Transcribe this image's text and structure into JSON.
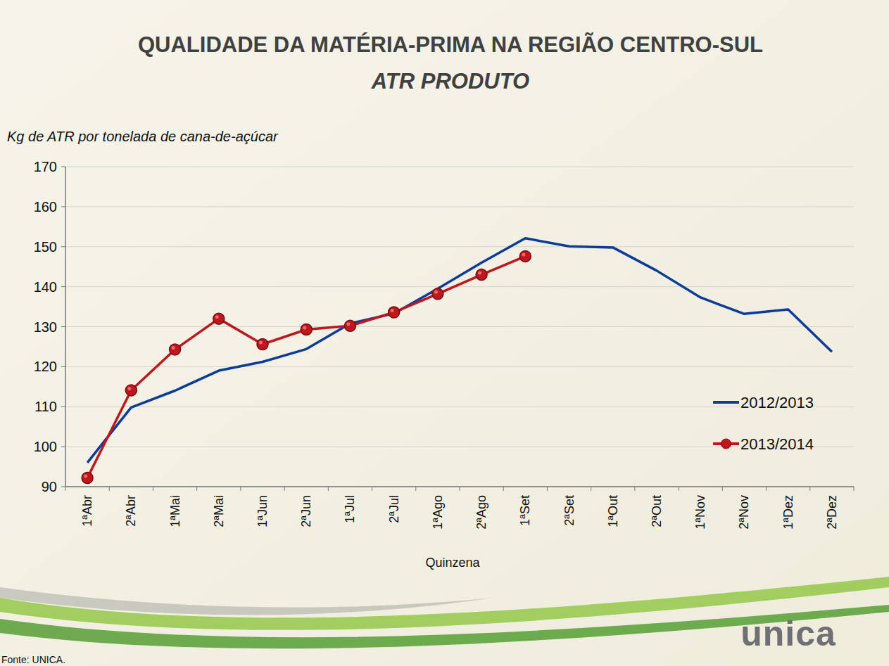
{
  "chart_data": {
    "type": "line",
    "title": "QUALIDADE DA MATÉRIA-PRIMA NA REGIÃO CENTRO-SUL",
    "subtitle": "ATR PRODUTO",
    "y_label": "Kg de ATR por tonelada de cana-de-açúcar",
    "x_label": "Quinzena",
    "source": "Fonte: UNICA.",
    "annotations": [
      "unica"
    ],
    "categories": [
      "1ªAbr",
      "2ªAbr",
      "1ªMai",
      "2ªMai",
      "1ªJun",
      "2ªJun",
      "1ªJul",
      "2ªJul",
      "1ªAgo",
      "2ªAgo",
      "1ªSet",
      "2ªSet",
      "1ªOut",
      "2ªOut",
      "1ªNov",
      "2ªNov",
      "1ªDez",
      "2ªDez"
    ],
    "series": [
      {
        "name": "2012/2013",
        "color": "#0b3c9c",
        "marker": "none",
        "line_style": "solid",
        "values": [
          96,
          109.8,
          114,
          119,
          121.2,
          124.4,
          130.8,
          133.3,
          139.5,
          146,
          152.1,
          150.1,
          149.8,
          144,
          137.3,
          133.2,
          134.3,
          123.7
        ]
      },
      {
        "name": "2013/2014",
        "color": "#c0161e",
        "marker": "circle",
        "line_style": "solid",
        "values": [
          92.2,
          114.1,
          124.3,
          132,
          125.6,
          129.3,
          130.2,
          133.6,
          138.2,
          143,
          147.6,
          null,
          null,
          null,
          null,
          null,
          null,
          null
        ]
      }
    ],
    "ylim": [
      90,
      170
    ],
    "yticks": [
      90,
      100,
      110,
      120,
      130,
      140,
      150,
      160,
      170
    ],
    "grid": true,
    "legend": "lower right"
  }
}
